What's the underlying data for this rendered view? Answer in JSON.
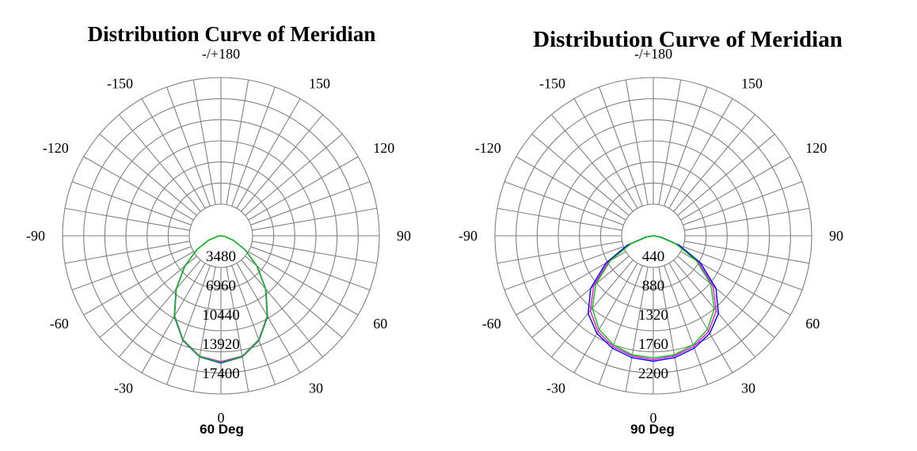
{
  "chart_data": [
    {
      "type": "polar",
      "title": "Distribution Curve of  Meridian",
      "caption": "60 Deg",
      "angle_labels": [
        "-/+180",
        "150",
        "120",
        "90",
        "60",
        "30",
        "0",
        "-30",
        "-60",
        "-90",
        "-120",
        "-150"
      ],
      "radial_tick_labels": [
        "3480",
        "6960",
        "10440",
        "13920",
        "17400"
      ],
      "rmax": 17400,
      "grid": true,
      "series": [
        {
          "color": "#ff00ff",
          "angles": [
            0,
            10,
            20,
            30,
            40,
            50,
            60,
            70,
            80,
            90
          ],
          "values": [
            17300,
            16800,
            15200,
            12700,
            9500,
            6400,
            3800,
            1800,
            500,
            0
          ]
        },
        {
          "color": "#0000ff",
          "angles": [
            0,
            10,
            20,
            30,
            40,
            50,
            60,
            70,
            80,
            90
          ],
          "values": [
            17500,
            16900,
            15300,
            12800,
            9600,
            6500,
            3850,
            1850,
            520,
            0
          ]
        },
        {
          "color": "#00cc00",
          "angles": [
            0,
            10,
            20,
            30,
            40,
            50,
            60,
            70,
            80,
            90
          ],
          "values": [
            17400,
            16850,
            15250,
            12750,
            9550,
            6450,
            3820,
            1820,
            510,
            0
          ]
        }
      ]
    },
    {
      "type": "polar",
      "title": "Distribution Curve of  Meridian",
      "caption": "90 Deg",
      "angle_labels": [
        "-/+180",
        "150",
        "120",
        "90",
        "60",
        "30",
        "0",
        "-30",
        "-60",
        "-90",
        "-120",
        "-150"
      ],
      "radial_tick_labels": [
        "440",
        "880",
        "1320",
        "1760",
        "2200"
      ],
      "rmax": 2200,
      "grid": true,
      "series": [
        {
          "color": "#ff00ff",
          "angles": [
            0,
            10,
            20,
            30,
            40,
            50,
            60,
            70,
            80,
            90
          ],
          "values": [
            2150,
            2120,
            2050,
            1920,
            1700,
            1350,
            900,
            450,
            120,
            0
          ]
        },
        {
          "color": "#0000ff",
          "angles": [
            0,
            10,
            20,
            30,
            40,
            50,
            60,
            70,
            80,
            90
          ],
          "values": [
            2180,
            2150,
            2080,
            1960,
            1760,
            1420,
            950,
            480,
            130,
            0
          ]
        },
        {
          "color": "#00cc00",
          "angles": [
            0,
            10,
            20,
            30,
            40,
            50,
            60,
            70,
            80,
            90
          ],
          "values": [
            2120,
            2100,
            2020,
            1880,
            1650,
            1300,
            860,
            420,
            110,
            0
          ]
        }
      ]
    }
  ]
}
